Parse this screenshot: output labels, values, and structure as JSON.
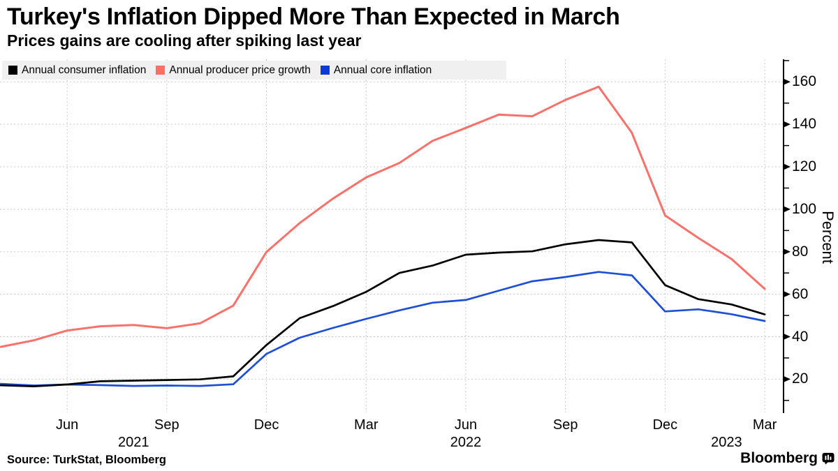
{
  "header": {
    "title": "Turkey's Inflation Dipped More Than Expected in March",
    "subtitle": "Prices gains are cooling after spiking last year"
  },
  "legend": {
    "items": [
      {
        "label": "Annual consumer inflation",
        "color": "#000000"
      },
      {
        "label": "Annual producer price growth",
        "color": "#fa6e64"
      },
      {
        "label": "Annual core inflation",
        "color": "#0d3ad6"
      }
    ]
  },
  "axis": {
    "y_label": "Percent",
    "y_minor": [
      10,
      30,
      50,
      70,
      90,
      110,
      130,
      150,
      170
    ]
  },
  "footer": {
    "source": "Source: TurkStat, Bloomberg",
    "brand": "Bloomberg",
    "brand_icon": "bloomberg-chart-icon"
  },
  "chart_data": {
    "type": "line",
    "title": "Turkey's Inflation Dipped More Than Expected in March",
    "subtitle": "Prices gains are cooling after spiking last year",
    "xlabel": "",
    "ylabel": "Percent",
    "ylim": [
      4,
      170
    ],
    "grid": "dashed, horizontal at major y ticks and vertical at quarterly x ticks",
    "legend_position": "top-left",
    "x": [
      "Apr 2021",
      "May 2021",
      "Jun 2021",
      "Jul 2021",
      "Aug 2021",
      "Sep 2021",
      "Oct 2021",
      "Nov 2021",
      "Dec 2021",
      "Jan 2022",
      "Feb 2022",
      "Mar 2022",
      "Apr 2022",
      "May 2022",
      "Jun 2022",
      "Jul 2022",
      "Aug 2022",
      "Sep 2022",
      "Oct 2022",
      "Nov 2022",
      "Dec 2022",
      "Jan 2023",
      "Feb 2023",
      "Mar 2023"
    ],
    "xticks": [
      {
        "label": "Jun",
        "month_index": 2
      },
      {
        "label": "Sep",
        "month_index": 5
      },
      {
        "label": "Dec",
        "month_index": 8
      },
      {
        "label": "Mar",
        "month_index": 11
      },
      {
        "label": "Jun",
        "month_index": 14
      },
      {
        "label": "Sep",
        "month_index": 17
      },
      {
        "label": "Dec",
        "month_index": 20
      },
      {
        "label": "Mar",
        "month_index": 23
      }
    ],
    "year_labels": [
      {
        "label": "2021",
        "month_index": 4.0
      },
      {
        "label": "2022",
        "month_index": 14.0
      },
      {
        "label": "2023",
        "month_index": 21.85
      }
    ],
    "yticks": [
      20,
      40,
      60,
      80,
      100,
      120,
      140,
      160
    ],
    "series": [
      {
        "name": "Annual consumer inflation",
        "color": "#000000",
        "values": [
          17.1,
          16.6,
          17.5,
          19.0,
          19.3,
          19.6,
          19.9,
          21.3,
          36.1,
          48.7,
          54.4,
          61.1,
          70.0,
          73.5,
          78.6,
          79.6,
          80.2,
          83.5,
          85.5,
          84.4,
          64.3,
          57.7,
          55.2,
          50.5
        ]
      },
      {
        "name": "Annual producer price growth",
        "color": "#f8716a",
        "values": [
          35.2,
          38.3,
          42.9,
          44.9,
          45.5,
          44.0,
          46.3,
          54.6,
          79.9,
          93.5,
          105.0,
          115.0,
          121.8,
          132.2,
          138.3,
          144.6,
          143.8,
          151.5,
          157.7,
          136.0,
          97.1,
          86.5,
          76.6,
          62.5
        ]
      },
      {
        "name": "Annual core inflation",
        "color": "#1d4fd6",
        "values": [
          17.8,
          17.0,
          17.5,
          17.2,
          16.8,
          17.0,
          16.8,
          17.6,
          31.9,
          39.5,
          44.1,
          48.4,
          52.4,
          56.0,
          57.3,
          61.7,
          66.1,
          68.1,
          70.5,
          68.9,
          51.9,
          52.9,
          50.6,
          47.4
        ]
      }
    ]
  }
}
